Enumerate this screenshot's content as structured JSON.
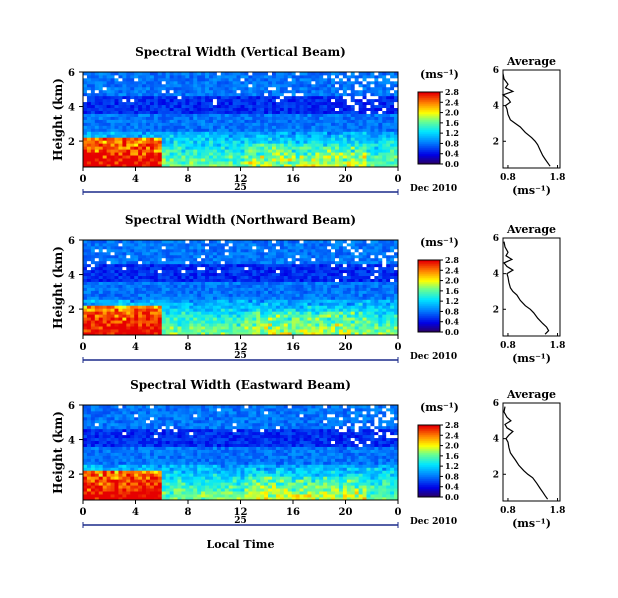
{
  "chart_data": [
    {
      "type": "heatmap",
      "title": "Spectral Width (Vertical Beam)",
      "ylabel": "Height (km)",
      "xticks": [
        "0",
        "4",
        "8",
        "12",
        "16",
        "20",
        "0"
      ],
      "xlim": [
        0,
        24
      ],
      "yticks": [
        "2",
        "4",
        "6"
      ],
      "ylim": [
        0.5,
        6
      ],
      "date_mark": "25",
      "date_suffix": "Dec 2010",
      "colorbar": {
        "unit": "(ms⁻¹)",
        "ticks": [
          "0.0",
          "0.4",
          "0.8",
          "1.2",
          "1.6",
          "2.0",
          "2.4",
          "2.8"
        ],
        "range": [
          0,
          2.8
        ]
      },
      "profile": {
        "title": "Average",
        "xlabel": "(ms⁻¹)",
        "xticks": [
          "0.8",
          "1.8"
        ],
        "yticks": [
          "2",
          "4",
          "6"
        ],
        "height": [
          0.6,
          0.8,
          1.0,
          1.2,
          1.5,
          1.8,
          2.0,
          2.2,
          2.5,
          2.8,
          3.0,
          3.2,
          3.5,
          3.8,
          4.0,
          4.2,
          4.4,
          4.6,
          4.8,
          5.0,
          5.2,
          5.5,
          5.8
        ],
        "width": [
          1.65,
          1.6,
          1.55,
          1.5,
          1.45,
          1.4,
          1.35,
          1.28,
          1.15,
          1.05,
          0.95,
          0.85,
          0.8,
          0.78,
          0.75,
          0.85,
          0.8,
          0.7,
          0.9,
          0.75,
          0.8,
          0.72,
          0.7
        ]
      }
    },
    {
      "type": "heatmap",
      "title": "Spectral Width (Northward Beam)",
      "ylabel": "Height (km)",
      "xticks": [
        "0",
        "4",
        "8",
        "12",
        "16",
        "20",
        "0"
      ],
      "xlim": [
        0,
        24
      ],
      "yticks": [
        "2",
        "4",
        "6"
      ],
      "ylim": [
        0.5,
        6
      ],
      "date_mark": "25",
      "date_suffix": "Dec 2010",
      "colorbar": {
        "unit": "(ms⁻¹)",
        "ticks": [
          "0.0",
          "0.4",
          "0.8",
          "1.2",
          "1.6",
          "2.0",
          "2.4",
          "2.8"
        ],
        "range": [
          0,
          2.8
        ]
      },
      "profile": {
        "title": "Average",
        "xlabel": "(ms⁻¹)",
        "xticks": [
          "0.8",
          "1.8"
        ],
        "yticks": [
          "2",
          "4",
          "6"
        ],
        "height": [
          0.6,
          0.8,
          1.0,
          1.2,
          1.5,
          1.8,
          2.0,
          2.2,
          2.5,
          2.8,
          3.0,
          3.2,
          3.5,
          3.8,
          4.0,
          4.2,
          4.4,
          4.6,
          4.8,
          5.0,
          5.2,
          5.5,
          5.8
        ],
        "width": [
          1.55,
          1.62,
          1.58,
          1.5,
          1.4,
          1.32,
          1.25,
          1.15,
          1.05,
          0.98,
          0.9,
          0.85,
          0.82,
          0.8,
          0.78,
          0.9,
          0.78,
          0.72,
          0.88,
          0.76,
          0.8,
          0.74,
          0.72
        ]
      }
    },
    {
      "type": "heatmap",
      "title": "Spectral Width (Eastward Beam)",
      "ylabel": "Height (km)",
      "xlabel": "Local Time",
      "xticks": [
        "0",
        "4",
        "8",
        "12",
        "16",
        "20",
        "0"
      ],
      "xlim": [
        0,
        24
      ],
      "yticks": [
        "2",
        "4",
        "6"
      ],
      "ylim": [
        0.5,
        6
      ],
      "date_mark": "25",
      "date_suffix": "Dec 2010",
      "colorbar": {
        "unit": "(ms⁻¹)",
        "ticks": [
          "0.0",
          "0.4",
          "0.8",
          "1.2",
          "1.6",
          "2.0",
          "2.4",
          "2.8"
        ],
        "range": [
          0,
          2.8
        ]
      },
      "profile": {
        "title": "Average",
        "xlabel": "(ms⁻¹)",
        "xticks": [
          "0.8",
          "1.8"
        ],
        "yticks": [
          "2",
          "4",
          "6"
        ],
        "height": [
          0.6,
          0.8,
          1.0,
          1.2,
          1.5,
          1.8,
          2.0,
          2.2,
          2.5,
          2.8,
          3.0,
          3.2,
          3.5,
          3.8,
          4.0,
          4.2,
          4.4,
          4.6,
          4.8,
          5.0,
          5.2,
          5.5,
          5.8
        ],
        "width": [
          1.6,
          1.55,
          1.5,
          1.45,
          1.38,
          1.3,
          1.2,
          1.12,
          1.02,
          0.95,
          0.9,
          0.85,
          0.82,
          0.8,
          0.76,
          0.82,
          0.9,
          0.78,
          0.74,
          0.86,
          0.78,
          0.72,
          0.74
        ]
      }
    }
  ]
}
